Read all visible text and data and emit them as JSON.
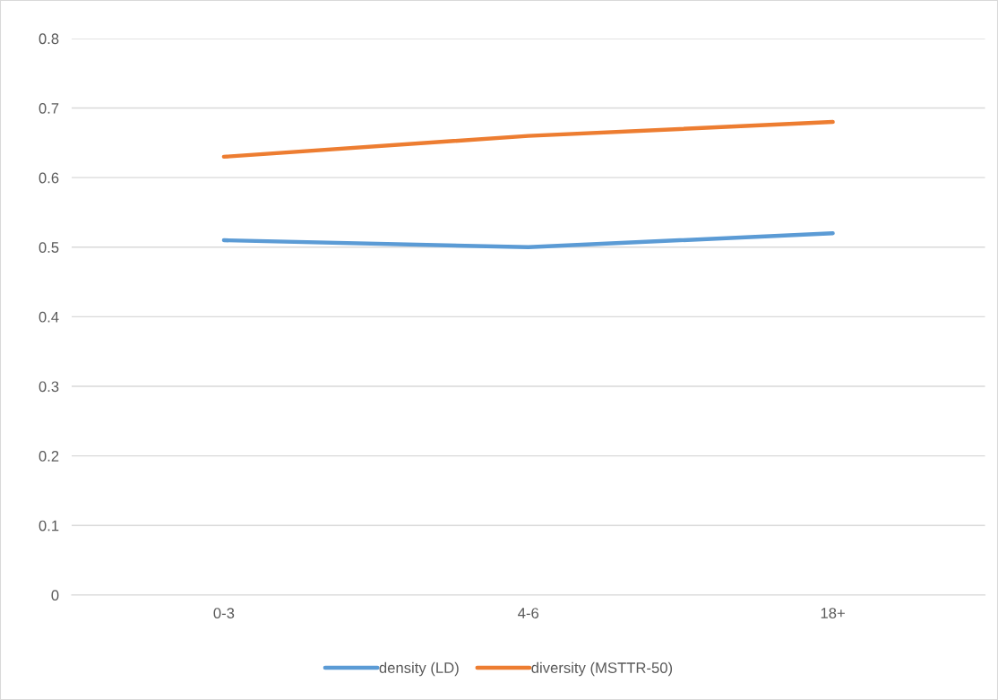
{
  "chart_data": {
    "type": "line",
    "categories": [
      "0-3",
      "4-6",
      "18+"
    ],
    "series": [
      {
        "name": "density (LD)",
        "color": "#5b9bd5",
        "values": [
          0.51,
          0.5,
          0.52
        ]
      },
      {
        "name": "diversity (MSTTR-50)",
        "color": "#ed7d31",
        "values": [
          0.63,
          0.66,
          0.68
        ]
      }
    ],
    "ylim": [
      0,
      0.8
    ],
    "yticks": [
      0,
      0.1,
      0.2,
      0.3,
      0.4,
      0.5,
      0.6,
      0.7,
      0.8
    ],
    "grid": "y",
    "legend": "bottom",
    "marker": "none",
    "line_style": "solid"
  }
}
